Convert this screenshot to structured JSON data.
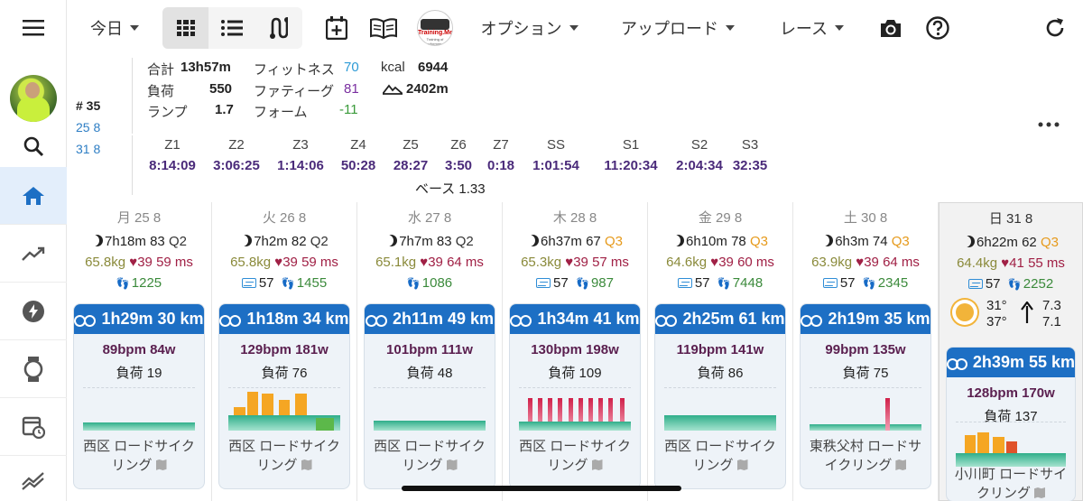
{
  "toolbar": {
    "period": "今日",
    "options": "オプション",
    "upload": "アップロード",
    "race": "レース"
  },
  "summary": {
    "week": "# 35",
    "dates": [
      "25 8",
      "31 8"
    ],
    "rows": [
      [
        {
          "label": "合計",
          "value": "13h57m"
        },
        {
          "label": "フィットネス",
          "value": "70"
        },
        {
          "label": "kcal",
          "value": "6944"
        }
      ],
      [
        {
          "label": "負荷",
          "value": "550"
        },
        {
          "label": "ファティーグ",
          "value": "81"
        },
        {
          "label": "",
          "value": "2402m"
        }
      ],
      [
        {
          "label": "ランプ",
          "value": "1.7"
        },
        {
          "label": "フォーム",
          "value": "-11"
        }
      ]
    ],
    "zones": [
      {
        "name": "Z1",
        "time": "8:14:09"
      },
      {
        "name": "Z2",
        "time": "3:06:25"
      },
      {
        "name": "Z3",
        "time": "1:14:06"
      },
      {
        "name": "Z4",
        "time": "50:28"
      },
      {
        "name": "Z5",
        "time": "28:27"
      },
      {
        "name": "Z6",
        "time": "3:50"
      },
      {
        "name": "Z7",
        "time": "0:18"
      },
      {
        "name": "SS",
        "time": "1:01:54"
      },
      {
        "name": "S1",
        "time": "11:20:34"
      },
      {
        "name": "S2",
        "time": "2:04:34"
      },
      {
        "name": "S3",
        "time": "32:35"
      }
    ],
    "base": "ベース 1.33",
    "colors": {
      "fitness": "#2e9bd6",
      "fatigue": "#7a2fa0",
      "form": "#3a9a3a"
    }
  },
  "days": [
    {
      "header": "月 25 8",
      "sleep": "7h18m",
      "score": "83",
      "quality": "Q2",
      "weight": "65.8kg",
      "hr": "39",
      "hrv": "59 ms",
      "stress": "",
      "steps": "1225",
      "activity": {
        "head": "1h29m  30 km",
        "stat": "89bpm  84w",
        "load": "負荷 19",
        "title": "西区 ロードサイクリング"
      }
    },
    {
      "header": "火 26 8",
      "sleep": "7h2m",
      "score": "82",
      "quality": "Q2",
      "weight": "65.8kg",
      "hr": "39",
      "hrv": "59 ms",
      "stress": "57",
      "steps": "1455",
      "activity": {
        "head": "1h18m  34 km",
        "stat": "129bpm  181w",
        "load": "負荷 76",
        "title": "西区 ロードサイクリング"
      }
    },
    {
      "header": "水 27 8",
      "sleep": "7h7m",
      "score": "83",
      "quality": "Q2",
      "weight": "65.1kg",
      "hr": "39",
      "hrv": "64 ms",
      "stress": "",
      "steps": "1086",
      "activity": {
        "head": "2h11m  49 km",
        "stat": "101bpm  111w",
        "load": "負荷 48",
        "title": "西区 ロードサイクリング"
      }
    },
    {
      "header": "木 28 8",
      "sleep": "6h37m",
      "score": "67",
      "quality": "Q3",
      "weight": "65.3kg",
      "hr": "39",
      "hrv": "57 ms",
      "stress": "57",
      "steps": "987",
      "activity": {
        "head": "1h34m  41 km",
        "stat": "130bpm  198w",
        "load": "負荷 109",
        "title": "西区 ロードサイクリング"
      }
    },
    {
      "header": "金 29 8",
      "sleep": "6h10m",
      "score": "78",
      "quality": "Q3",
      "weight": "64.6kg",
      "hr": "39",
      "hrv": "60 ms",
      "stress": "57",
      "steps": "7448",
      "activity": {
        "head": "2h25m  61 km",
        "stat": "119bpm  141w",
        "load": "負荷 86",
        "title": "西区 ロードサイクリング"
      }
    },
    {
      "header": "土 30 8",
      "sleep": "6h3m",
      "score": "74",
      "quality": "Q3",
      "weight": "63.9kg",
      "hr": "39",
      "hrv": "64 ms",
      "stress": "57",
      "steps": "2345",
      "activity": {
        "head": "2h19m  35 km",
        "stat": "99bpm  135w",
        "load": "負荷 75",
        "title": "東秩父村 ロードサイクリング"
      }
    },
    {
      "header": "日 31 8",
      "sleep": "6h22m",
      "score": "62",
      "quality": "Q3",
      "weight": "64.4kg",
      "hr": "41",
      "hrv": "55 ms",
      "stress": "57",
      "steps": "2252",
      "weather": {
        "low": "31°",
        "high": "37°",
        "wind1": "7.3",
        "wind2": "7.1"
      },
      "activity": {
        "head": "2h39m  55 km",
        "stat": "128bpm  170w",
        "load": "負荷 137",
        "title": "小川町 ロードサイクリング"
      }
    }
  ]
}
